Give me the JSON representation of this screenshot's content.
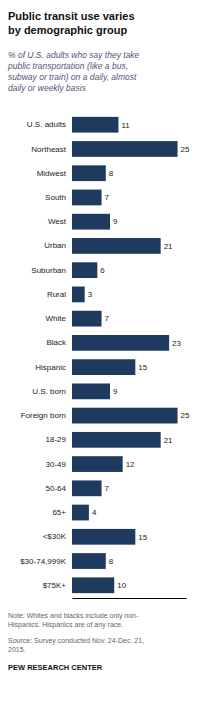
{
  "chart_data": {
    "type": "bar",
    "orientation": "horizontal",
    "title": "Public transit use varies\nby demographic  group",
    "subtitle": "% of U.S. adults who say they take\npublic transportation (like a bus,\nsubway or train) on a daily, almost\ndaily or weekly basis",
    "annotations": [
      "Note: Whites and blacks include only non-\nHispanics. Hispanics are of any race.",
      "Source: Survey conducted Nov. 24-Dec. 21,\n2015.",
      "PEW RESEARCH CENTER"
    ],
    "categories": [
      "U.S. adults",
      "Northeast",
      "Midwest",
      "South",
      "West",
      "Urban",
      "Suburban",
      "Rural",
      "White",
      "Black",
      "Hispanic",
      "U.S. born",
      "Foreign born",
      "18-29",
      "30-49",
      "50-64",
      "65+",
      "<$30K",
      "$30-74,999K",
      "$75K+"
    ],
    "values": [
      11,
      25,
      8,
      7,
      9,
      21,
      6,
      3,
      7,
      23,
      15,
      9,
      25,
      21,
      12,
      7,
      4,
      15,
      8,
      10
    ],
    "color": "#1e3a5f",
    "xlim": [
      0,
      27
    ],
    "data_labels": true,
    "tick_labels": false,
    "grid": false
  }
}
